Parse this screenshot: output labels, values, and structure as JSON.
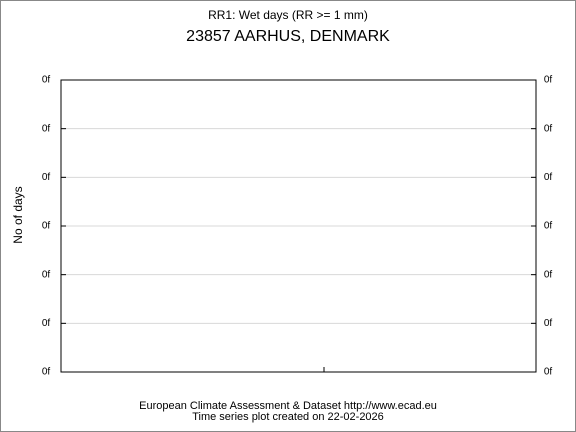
{
  "chart_data": {
    "type": "line",
    "title": "RR1: Wet days (RR >= 1 mm)",
    "subtitle": "23857 AARHUS, DENMARK",
    "y_label": "No of days",
    "ylim": [
      0,
      6
    ],
    "yticks": [
      {
        "value": 0,
        "label": "0f"
      },
      {
        "value": 1,
        "label": "0f"
      },
      {
        "value": 2,
        "label": "0f"
      },
      {
        "value": 3,
        "label": "0f"
      },
      {
        "value": 4,
        "label": "0f"
      },
      {
        "value": 5,
        "label": "0f"
      },
      {
        "value": 6,
        "label": "0f"
      }
    ],
    "grid": true,
    "series": [],
    "footer": [
      "European Climate Assessment & Dataset  http://www.ecad.eu",
      "Time series plot created on 22-02-2026"
    ]
  }
}
